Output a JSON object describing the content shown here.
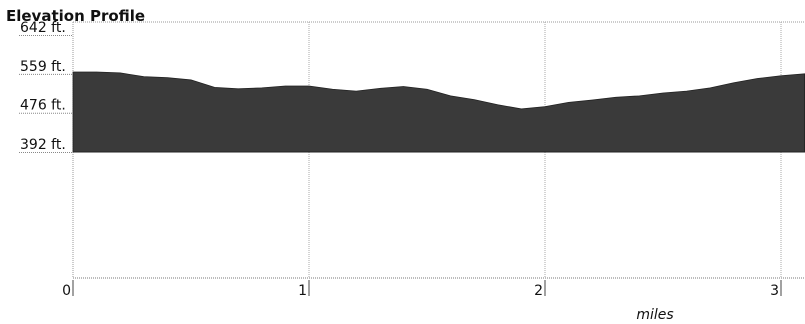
{
  "chart_data": {
    "type": "area",
    "title": "Elevation Profile",
    "xlabel": "miles",
    "ylabel": "",
    "xlim": [
      0,
      3.1
    ],
    "ylim": [
      392,
      642
    ],
    "x_ticks": [
      0,
      1,
      2,
      3
    ],
    "x_tick_labels": [
      "0",
      "1",
      "2",
      "3"
    ],
    "y_ticks": [
      642,
      559,
      476,
      392
    ],
    "y_tick_labels": [
      "642 ft.",
      "559 ft.",
      "476 ft.",
      "392 ft."
    ],
    "grid": true,
    "fill_color": "#3a3a3a",
    "series": [
      {
        "x": [
          0,
          0.1,
          0.2,
          0.3,
          0.4,
          0.5,
          0.6,
          0.7,
          0.8,
          0.9,
          1.0,
          1.1,
          1.2,
          1.3,
          1.4,
          1.5,
          1.6,
          1.7,
          1.8,
          1.9,
          2.0,
          2.1,
          2.2,
          2.3,
          2.4,
          2.5,
          2.6,
          2.7,
          2.8,
          2.9,
          3.0,
          3.1
        ],
        "y": [
          563,
          563,
          561,
          553,
          551,
          546,
          530,
          527,
          529,
          533,
          533,
          526,
          522,
          528,
          532,
          526,
          512,
          504,
          493,
          484,
          489,
          498,
          503,
          509,
          512,
          518,
          522,
          529,
          540,
          549,
          555,
          559
        ]
      }
    ]
  }
}
